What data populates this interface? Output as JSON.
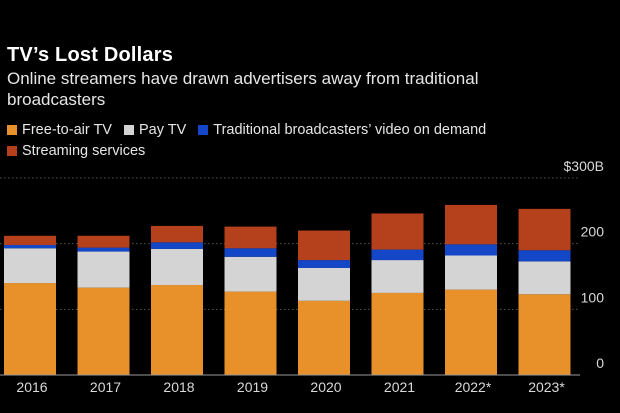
{
  "header": {
    "title": "TV’s Lost Dollars",
    "subtitle": "Online streamers have drawn advertisers away from traditional broadcasters"
  },
  "colors": {
    "free_to_air": "#e8902a",
    "pay_tv": "#d4d4d4",
    "vod": "#1446c8",
    "streaming": "#b5401c",
    "grid": "#555555",
    "axis_text": "#d9d9d9"
  },
  "chart_data": {
    "type": "bar",
    "stacked": true,
    "categories": [
      "2016",
      "2017",
      "2018",
      "2019",
      "2020",
      "2021",
      "2022*",
      "2023*"
    ],
    "series": [
      {
        "name": "Free-to-air TV",
        "color": "#e8902a",
        "values": [
          140,
          133,
          137,
          127,
          113,
          125,
          130,
          123
        ]
      },
      {
        "name": "Pay TV",
        "color": "#d4d4d4",
        "values": [
          53,
          55,
          55,
          53,
          50,
          50,
          52,
          50
        ]
      },
      {
        "name": "Traditional broadcasters’ video on demand",
        "color": "#1446c8",
        "values": [
          5,
          6,
          10,
          13,
          12,
          16,
          17,
          17
        ]
      },
      {
        "name": "Streaming services",
        "color": "#b5401c",
        "values": [
          14,
          18,
          25,
          33,
          45,
          55,
          60,
          63
        ]
      }
    ],
    "yaxis": {
      "min": 0,
      "max": 300,
      "ticks": [
        0,
        100,
        200,
        300
      ],
      "tick_labels": [
        "0",
        "100",
        "200",
        "$300B"
      ],
      "position": "right"
    },
    "grid": true,
    "legend_position": "top-left"
  }
}
